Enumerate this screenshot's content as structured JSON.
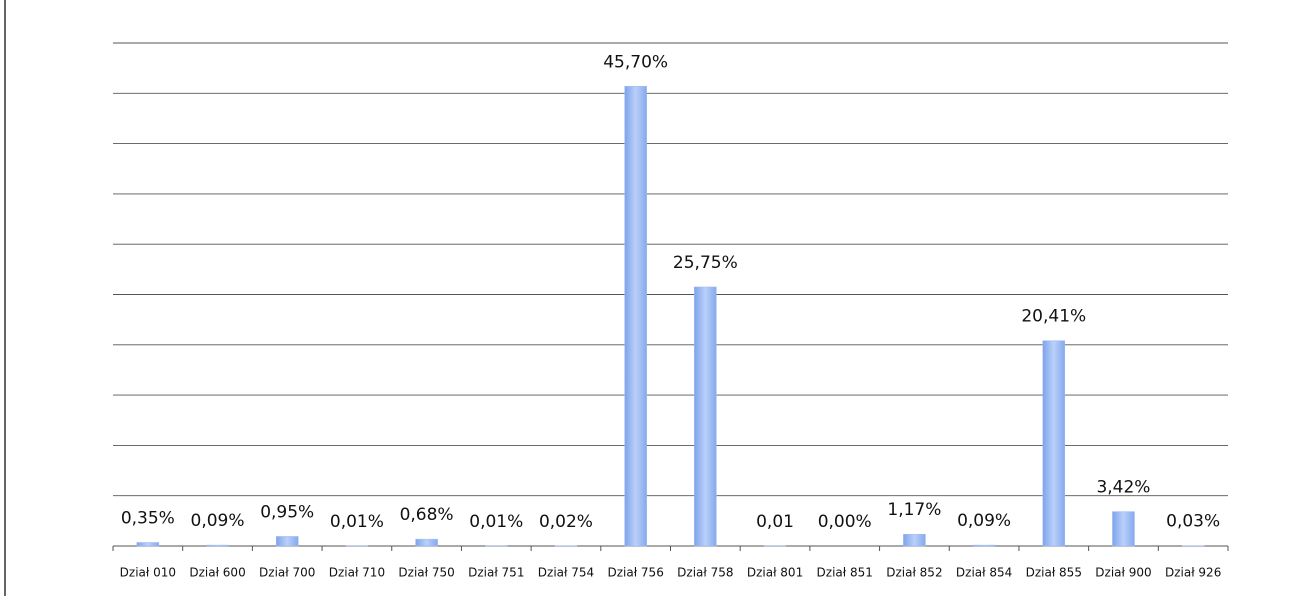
{
  "chart_data": {
    "type": "bar",
    "categories": [
      "Dział 010",
      "Dział 600",
      "Dział 700",
      "Dział 710",
      "Dział 750",
      "Dział 751",
      "Dział 754",
      "Dział 756",
      "Dział 758",
      "Dział 801",
      "Dział 851",
      "Dział 852",
      "Dział 854",
      "Dział 855",
      "Dział 900",
      "Dział 926"
    ],
    "values": [
      0.35,
      0.09,
      0.95,
      0.01,
      0.68,
      0.01,
      0.02,
      45.7,
      25.75,
      0.01,
      0.0,
      1.17,
      0.09,
      20.41,
      3.42,
      0.03
    ],
    "value_labels": [
      "0,35%",
      "0,09%",
      "0,95%",
      "0,01%",
      "0,68%",
      "0,01%",
      "0,02%",
      "45,70%",
      "25,75%",
      "0,01",
      "0,00%",
      "1,17%",
      "0,09%",
      "20,41%",
      "3,42%",
      "0,03%"
    ],
    "color": "#9dbbf2",
    "ylim": [
      0,
      50
    ],
    "yticks": [
      0,
      5,
      10,
      15,
      20,
      25,
      30,
      35,
      40,
      45,
      50
    ],
    "grid": true
  }
}
